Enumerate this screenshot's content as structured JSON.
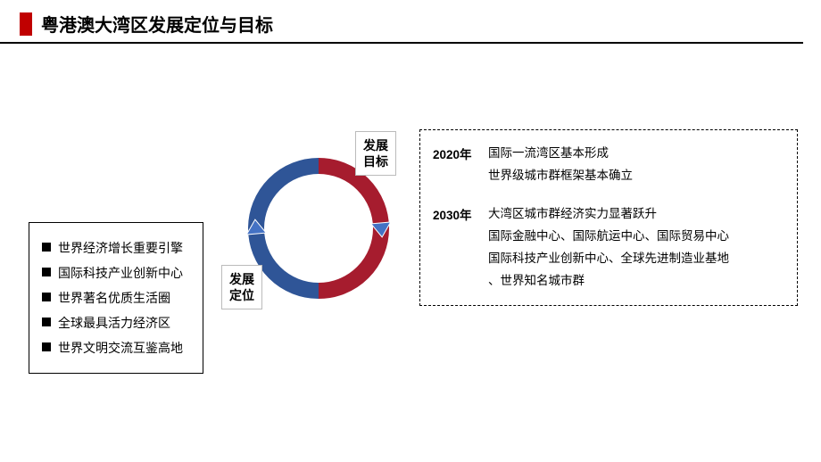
{
  "colors": {
    "accent_red": "#c00000",
    "arrow_blue": "#4472c4",
    "ring_red": "#a61c2e",
    "ring_blue": "#2f5597",
    "border_gray": "#bfbfbf"
  },
  "title": "粤港澳大湾区发展定位与目标",
  "left_list": {
    "items": [
      "世界经济增长重要引擎",
      "国际科技产业创新中心",
      "世界著名优质生活圈",
      "全球最具活力经济区",
      "世界文明交流互鉴高地"
    ]
  },
  "ring": {
    "label_top_line1": "发展",
    "label_top_line2": "目标",
    "label_bottom_line1": "发展",
    "label_bottom_line2": "定位",
    "outer_radius": 70,
    "stroke_width": 18
  },
  "goals": [
    {
      "year": "2020年",
      "lines": [
        "国际一流湾区基本形成",
        "世界级城市群框架基本确立"
      ]
    },
    {
      "year": "2030年",
      "lines": [
        "大湾区城市群经济实力显著跃升",
        "国际金融中心、国际航运中心、国际贸易中心",
        "国际科技产业创新中心、全球先进制造业基地",
        "、世界知名城市群"
      ]
    }
  ]
}
